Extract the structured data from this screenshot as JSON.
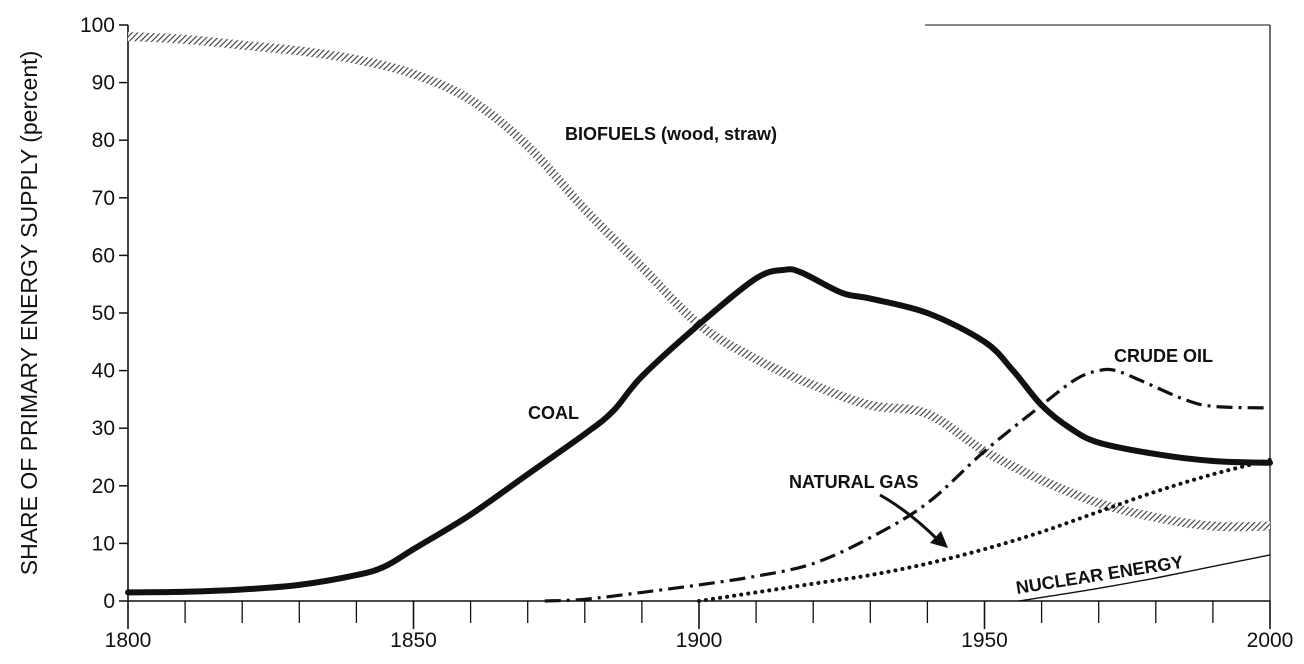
{
  "chart_data": {
    "type": "line",
    "title": "",
    "xlabel": "",
    "ylabel": "SHARE OF PRIMARY ENERGY SUPPLY (percent)",
    "xlim": [
      1800,
      2000
    ],
    "ylim": [
      0,
      100
    ],
    "x_ticks": [
      1800,
      1850,
      1900,
      1950,
      2000
    ],
    "y_ticks": [
      0,
      10,
      20,
      30,
      40,
      50,
      60,
      70,
      80,
      90,
      100
    ],
    "grid": false,
    "series": [
      {
        "name": "BIOFUELS (wood, straw)",
        "style": "hatched",
        "color": "#555555",
        "points": [
          [
            1800,
            98
          ],
          [
            1810,
            97.5
          ],
          [
            1820,
            96.5
          ],
          [
            1830,
            95.5
          ],
          [
            1840,
            94
          ],
          [
            1850,
            91.5
          ],
          [
            1860,
            87
          ],
          [
            1870,
            79
          ],
          [
            1880,
            68
          ],
          [
            1890,
            58
          ],
          [
            1900,
            48
          ],
          [
            1910,
            42
          ],
          [
            1920,
            37.5
          ],
          [
            1930,
            34
          ],
          [
            1940,
            32.5
          ],
          [
            1950,
            26
          ],
          [
            1960,
            21
          ],
          [
            1970,
            17
          ],
          [
            1980,
            14.5
          ],
          [
            1990,
            13
          ],
          [
            2000,
            13
          ]
        ]
      },
      {
        "name": "COAL",
        "style": "solid-thick",
        "color": "#111111",
        "points": [
          [
            1800,
            1.5
          ],
          [
            1810,
            1.6
          ],
          [
            1820,
            2
          ],
          [
            1830,
            2.8
          ],
          [
            1840,
            4.5
          ],
          [
            1845,
            6
          ],
          [
            1850,
            9
          ],
          [
            1860,
            15
          ],
          [
            1870,
            22
          ],
          [
            1880,
            29
          ],
          [
            1885,
            33
          ],
          [
            1890,
            39
          ],
          [
            1900,
            48
          ],
          [
            1910,
            56
          ],
          [
            1915,
            57.5
          ],
          [
            1918,
            57
          ],
          [
            1925,
            53.5
          ],
          [
            1930,
            52.5
          ],
          [
            1940,
            50
          ],
          [
            1950,
            45
          ],
          [
            1955,
            40
          ],
          [
            1960,
            34
          ],
          [
            1965,
            30
          ],
          [
            1970,
            27.5
          ],
          [
            1980,
            25.5
          ],
          [
            1990,
            24.3
          ],
          [
            2000,
            24
          ]
        ]
      },
      {
        "name": "CRUDE OIL",
        "style": "dash-dot",
        "color": "#111111",
        "points": [
          [
            1873,
            0
          ],
          [
            1880,
            0.3
          ],
          [
            1890,
            1.5
          ],
          [
            1900,
            2.8
          ],
          [
            1910,
            4.3
          ],
          [
            1920,
            6.5
          ],
          [
            1930,
            11
          ],
          [
            1940,
            17
          ],
          [
            1950,
            26
          ],
          [
            1960,
            34
          ],
          [
            1966,
            38.5
          ],
          [
            1970,
            40
          ],
          [
            1973,
            40
          ],
          [
            1978,
            38
          ],
          [
            1985,
            35
          ],
          [
            1990,
            33.8
          ],
          [
            2000,
            33.5
          ]
        ]
      },
      {
        "name": "NATURAL GAS",
        "style": "dotted",
        "color": "#111111",
        "points": [
          [
            1900,
            0
          ],
          [
            1910,
            1.5
          ],
          [
            1920,
            3
          ],
          [
            1930,
            4.5
          ],
          [
            1940,
            6.5
          ],
          [
            1950,
            9
          ],
          [
            1960,
            12
          ],
          [
            1970,
            15.5
          ],
          [
            1980,
            19
          ],
          [
            1990,
            22
          ],
          [
            2000,
            24.5
          ]
        ]
      },
      {
        "name": "NUCLEAR ENERGY",
        "style": "thin",
        "color": "#111111",
        "points": [
          [
            1956,
            0
          ],
          [
            1970,
            2.2
          ],
          [
            1980,
            4
          ],
          [
            1990,
            6
          ],
          [
            2000,
            8
          ]
        ]
      }
    ]
  }
}
